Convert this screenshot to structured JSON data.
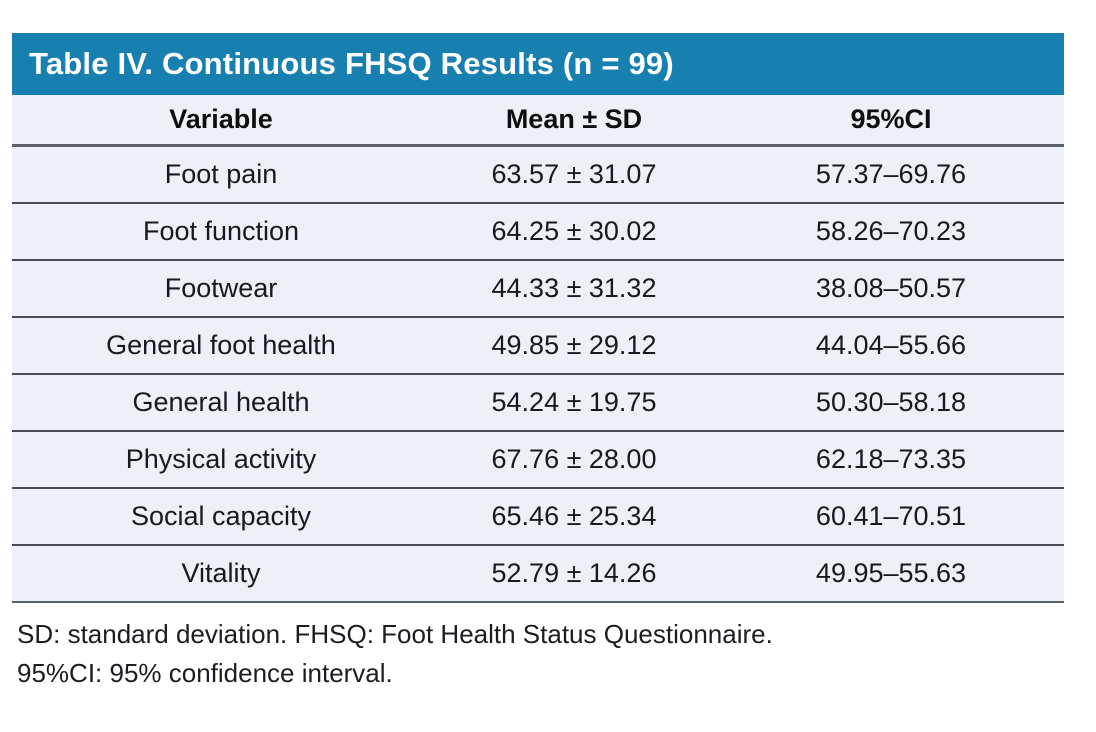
{
  "table": {
    "title": "Table IV. Continuous FHSQ Results (n = 99)",
    "title_bar_color": "#1880B0",
    "title_text_color": "#FFFFFF",
    "row_background_color": "#EDF0F7",
    "separator_color": "#474C52",
    "header_rule_color": "#596066",
    "text_color": "#16191D",
    "columns": [
      "Variable",
      "Mean ± SD",
      "95%CI"
    ],
    "rows": [
      {
        "variable": "Foot pain",
        "mean_sd": "63.57 ± 31.07",
        "ci_95": "57.37–69.76"
      },
      {
        "variable": "Foot function",
        "mean_sd": "64.25 ± 30.02",
        "ci_95": "58.26–70.23"
      },
      {
        "variable": "Footwear",
        "mean_sd": "44.33 ± 31.32",
        "ci_95": "38.08–50.57"
      },
      {
        "variable": "General foot health",
        "mean_sd": "49.85 ± 29.12",
        "ci_95": "44.04–55.66"
      },
      {
        "variable": "General health",
        "mean_sd": "54.24 ± 19.75",
        "ci_95": "50.30–58.18"
      },
      {
        "variable": "Physical activity",
        "mean_sd": "67.76 ± 28.00",
        "ci_95": "62.18–73.35"
      },
      {
        "variable": "Social capacity",
        "mean_sd": "65.46 ± 25.34",
        "ci_95": "60.41–70.51"
      },
      {
        "variable": "Vitality",
        "mean_sd": "52.79 ± 14.26",
        "ci_95": "49.95–55.63"
      }
    ],
    "footnotes": [
      "SD: standard deviation. FHSQ: Foot Health Status Questionnaire.",
      "95%CI: 95% confidence interval."
    ]
  }
}
